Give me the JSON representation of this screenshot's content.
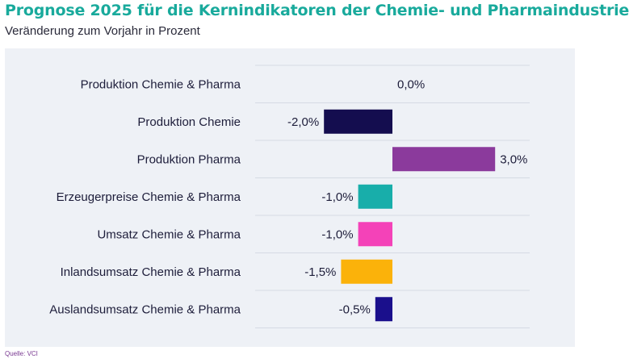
{
  "header": {
    "title": "Prognose 2025 für die Kernindikatoren der Chemie- und Pharmaindustrie",
    "subtitle": "Veränderung zum Vorjahr in Prozent"
  },
  "footer": {
    "source": "Quelle: VCI"
  },
  "chart_data": {
    "type": "bar",
    "orientation": "horizontal",
    "title": "Prognose 2025 für die Kernindikatoren der Chemie- und Pharmaindustrie",
    "subtitle": "Veränderung zum Vorjahr in Prozent",
    "xlabel": "",
    "ylabel": "",
    "xlim": [
      -4,
      4
    ],
    "grid": true,
    "categories": [
      "Produktion Chemie & Pharma",
      "Produktion Chemie",
      "Produktion Pharma",
      "Erzeugerpreise Chemie & Pharma",
      "Umsatz Chemie & Pharma",
      "Inlandsumsatz Chemie & Pharma",
      "Auslandsumsatz Chemie & Pharma"
    ],
    "values": [
      0.0,
      -2.0,
      3.0,
      -1.0,
      -1.0,
      -1.5,
      -0.5
    ],
    "value_labels": [
      "0,0%",
      "-2,0%",
      "3,0%",
      "-1,0%",
      "-1,0%",
      "-1,5%",
      "-0,5%"
    ],
    "colors": [
      "#1a1446",
      "#140d4f",
      "#8b3a9c",
      "#18aeaa",
      "#f442b8",
      "#fbb20a",
      "#1a0f8c"
    ]
  }
}
